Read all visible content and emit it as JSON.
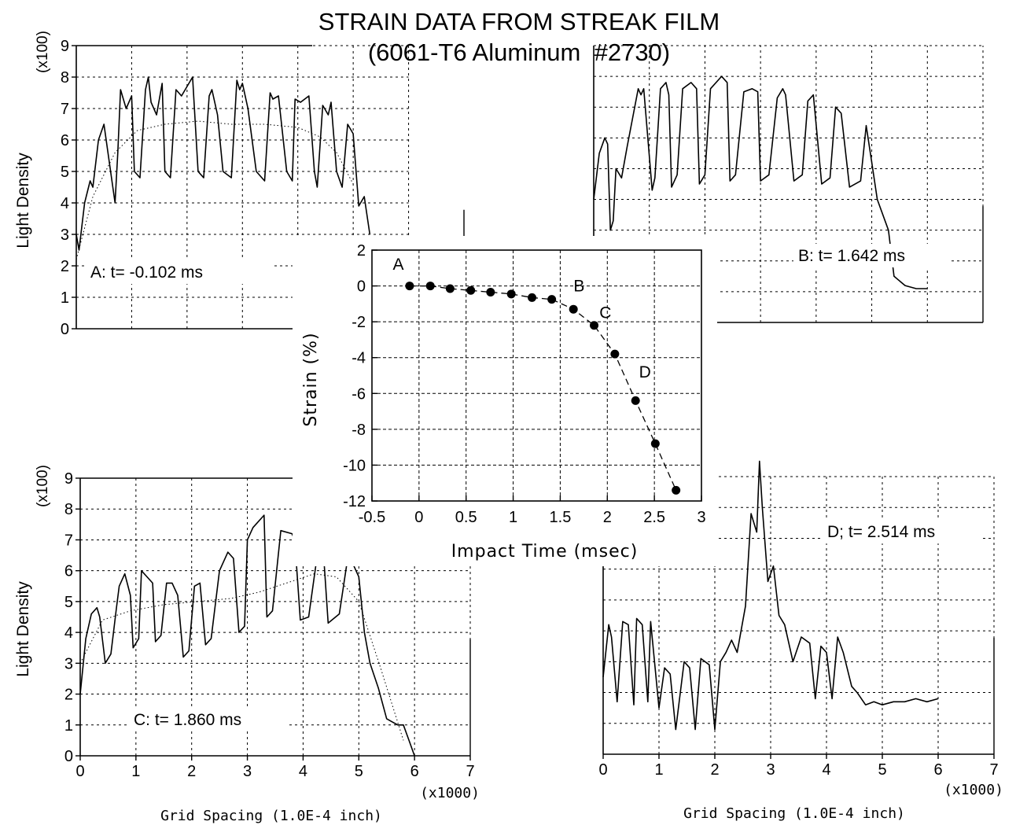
{
  "title": {
    "line1": "STRAIN DATA FROM STREAK FILM",
    "line2": "(6061-T6 Aluminum  #2730)"
  },
  "colors": {
    "ink": "#000000",
    "grid": "#000000",
    "background": "#ffffff"
  },
  "density_axes": {
    "ylabel": "Light Density",
    "yscale_note": "(x100)",
    "xlabel": "Grid Spacing (1.0E-4 inch)",
    "xscale_note": "(x1000)",
    "yticks": [
      "0",
      "1",
      "2",
      "3",
      "4",
      "5",
      "6",
      "7",
      "8",
      "9"
    ],
    "xticks": [
      "0",
      "1",
      "2",
      "3",
      "4",
      "5",
      "6",
      "7"
    ]
  },
  "chart_data": [
    {
      "type": "line",
      "id": "strain-vs-time",
      "title": "",
      "xlabel": "Impact Time (msec)",
      "ylabel": "Strain (%)",
      "xlim": [
        -0.5,
        3
      ],
      "ylim": [
        -12,
        2
      ],
      "xticks": [
        "-0.5",
        "0",
        "0.5",
        "1",
        "1.5",
        "2",
        "2.5",
        "3"
      ],
      "yticks": [
        "2",
        "0",
        "-2",
        "-4",
        "-6",
        "-8",
        "-10",
        "-12"
      ],
      "grid": true,
      "marker": "filled-circle",
      "line_style": "dashed",
      "series": [
        {
          "x": [
            -0.1,
            0.12,
            0.33,
            0.55,
            0.76,
            0.98,
            1.2,
            1.41,
            1.64,
            1.86,
            2.08,
            2.3,
            2.51,
            2.73
          ],
          "y": [
            0.0,
            0.0,
            -0.15,
            -0.25,
            -0.35,
            -0.45,
            -0.65,
            -0.75,
            -1.3,
            -2.2,
            -3.8,
            -6.4,
            -8.8,
            -11.4
          ]
        }
      ],
      "annotations": [
        {
          "text": "A",
          "x": -0.22,
          "y": 0.9
        },
        {
          "text": "B",
          "x": 1.7,
          "y": -0.3
        },
        {
          "text": "C",
          "x": 1.98,
          "y": -1.8
        },
        {
          "text": "D",
          "x": 2.4,
          "y": -5.1
        }
      ]
    },
    {
      "type": "line",
      "id": "panel-A",
      "label": "A:  t= -0.102 ms",
      "xlim": [
        0,
        7000
      ],
      "ylim": [
        0,
        900
      ],
      "grid": true,
      "series": [
        {
          "name": "",
          "x": [
            0,
            50,
            150,
            250,
            300,
            400,
            500,
            700,
            750,
            800,
            900,
            1000,
            1050,
            1150,
            1250,
            1300,
            1350,
            1450,
            1550,
            1600,
            1700,
            1800,
            1900,
            2100,
            2200,
            2300,
            2400,
            2450,
            2550,
            2650,
            2800,
            2900,
            2950,
            3000,
            3100,
            3250,
            3400,
            3500,
            3550,
            3650,
            3800,
            3900,
            3950,
            4050,
            4200,
            4300,
            4350,
            4450,
            4550,
            4600,
            4700,
            4800,
            4900,
            5000,
            5100,
            5200,
            5300
          ],
          "y": [
            300,
            250,
            400,
            470,
            450,
            600,
            650,
            400,
            560,
            760,
            700,
            740,
            500,
            480,
            760,
            800,
            720,
            680,
            780,
            500,
            480,
            760,
            740,
            800,
            500,
            480,
            740,
            760,
            680,
            500,
            480,
            790,
            760,
            780,
            700,
            500,
            470,
            750,
            730,
            740,
            500,
            470,
            730,
            720,
            740,
            500,
            450,
            710,
            680,
            720,
            500,
            450,
            650,
            620,
            390,
            420,
            300
          ]
        },
        {
          "name": "",
          "x": [
            0,
            300,
            700,
            1100,
            1600,
            2200,
            2800,
            3400,
            4000,
            4400,
            4700,
            5000
          ],
          "y": [
            220,
            420,
            560,
            630,
            650,
            660,
            650,
            650,
            640,
            610,
            560,
            460
          ]
        }
      ]
    },
    {
      "type": "line",
      "id": "panel-B",
      "label": "B:  t= 1.642 ms",
      "xlim": [
        0,
        7000
      ],
      "ylim": [
        0,
        900
      ],
      "grid": true,
      "series": [
        {
          "name": "",
          "x": [
            0,
            100,
            200,
            250,
            300,
            350,
            400,
            500,
            600,
            800,
            850,
            900,
            1050,
            1100,
            1200,
            1300,
            1350,
            1400,
            1500,
            1600,
            1750,
            1850,
            1900,
            2000,
            2100,
            2300,
            2400,
            2450,
            2550,
            2700,
            2850,
            2950,
            3000,
            3150,
            3300,
            3400,
            3450,
            3600,
            3750,
            3850,
            3950,
            4100,
            4250,
            4350,
            4450,
            4600,
            4800,
            4900,
            5000,
            5100,
            5300,
            5400,
            5600,
            5800,
            6000
          ],
          "y": [
            400,
            550,
            600,
            580,
            300,
            330,
            500,
            470,
            570,
            760,
            740,
            760,
            430,
            470,
            760,
            780,
            740,
            440,
            480,
            760,
            780,
            760,
            450,
            480,
            760,
            800,
            780,
            460,
            480,
            750,
            760,
            750,
            460,
            480,
            730,
            760,
            740,
            460,
            480,
            720,
            740,
            450,
            470,
            700,
            680,
            440,
            460,
            640,
            520,
            400,
            300,
            150,
            120,
            110,
            110
          ]
        }
      ]
    },
    {
      "type": "line",
      "id": "panel-C",
      "label": "C:  t= 1.860 ms",
      "xlim": [
        0,
        7000
      ],
      "ylim": [
        0,
        900
      ],
      "grid": true,
      "series": [
        {
          "name": "",
          "x": [
            0,
            100,
            200,
            300,
            350,
            450,
            550,
            650,
            700,
            800,
            900,
            950,
            1050,
            1100,
            1200,
            1300,
            1350,
            1450,
            1550,
            1650,
            1750,
            1850,
            1950,
            2050,
            2150,
            2250,
            2350,
            2500,
            2650,
            2750,
            2850,
            2950,
            3000,
            3100,
            3300,
            3350,
            3450,
            3600,
            3800,
            3850,
            3950,
            4100,
            4300,
            4350,
            4450,
            4650,
            4800,
            4900,
            5000,
            5100,
            5200,
            5350,
            5500,
            5600,
            5700,
            5800,
            5900,
            6000
          ],
          "y": [
            200,
            380,
            460,
            480,
            450,
            300,
            330,
            480,
            550,
            590,
            520,
            350,
            380,
            600,
            580,
            560,
            370,
            390,
            560,
            560,
            520,
            320,
            340,
            550,
            560,
            360,
            380,
            600,
            660,
            640,
            400,
            420,
            700,
            740,
            780,
            450,
            470,
            730,
            720,
            700,
            440,
            450,
            710,
            700,
            430,
            460,
            640,
            620,
            580,
            400,
            300,
            220,
            120,
            110,
            100,
            100,
            50,
            0
          ]
        },
        {
          "name": "",
          "x": [
            0,
            400,
            900,
            1500,
            2100,
            2700,
            3200,
            3700,
            4200,
            4600,
            5000,
            5400,
            5800
          ],
          "y": [
            300,
            440,
            470,
            490,
            500,
            510,
            530,
            560,
            590,
            580,
            500,
            280,
            50
          ]
        }
      ]
    },
    {
      "type": "line",
      "id": "panel-D",
      "label": "D;  t= 2.514 ms",
      "xlim": [
        0,
        7000
      ],
      "ylim": [
        0,
        900
      ],
      "grid": true,
      "series": [
        {
          "name": "",
          "x": [
            0,
            100,
            150,
            250,
            350,
            450,
            550,
            600,
            700,
            800,
            850,
            1000,
            1100,
            1200,
            1300,
            1450,
            1550,
            1650,
            1750,
            1900,
            2000,
            2100,
            2200,
            2300,
            2400,
            2550,
            2650,
            2750,
            2800,
            2850,
            2950,
            3050,
            3150,
            3250,
            3400,
            3550,
            3700,
            3800,
            3900,
            4000,
            4100,
            4200,
            4300,
            4450,
            4550,
            4700,
            4850,
            5000,
            5200,
            5400,
            5600,
            5800,
            6000
          ],
          "y": [
            250,
            420,
            380,
            170,
            430,
            420,
            160,
            440,
            420,
            170,
            430,
            150,
            280,
            260,
            80,
            300,
            280,
            80,
            310,
            290,
            80,
            300,
            330,
            370,
            330,
            480,
            780,
            720,
            950,
            800,
            560,
            610,
            450,
            420,
            300,
            380,
            360,
            180,
            350,
            330,
            180,
            380,
            330,
            220,
            200,
            160,
            170,
            160,
            170,
            170,
            180,
            170,
            180
          ]
        }
      ]
    }
  ]
}
